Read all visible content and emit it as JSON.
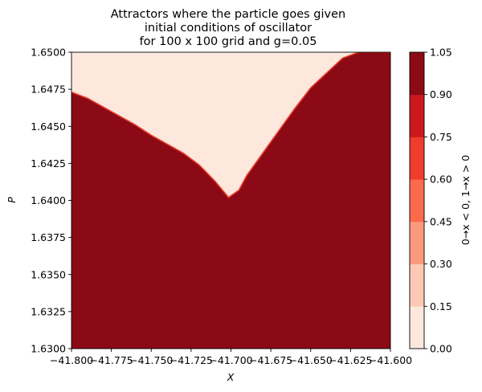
{
  "chart_data": {
    "type": "heatmap",
    "title_lines": [
      "Attractors where the particle goes given",
      "initial conditions of oscillator",
      "for 100 x 100 grid and g=0.05"
    ],
    "xlabel": "X",
    "ylabel": "P",
    "xlim": [
      -41.8,
      -41.6
    ],
    "ylim": [
      1.63,
      1.65
    ],
    "x_ticks": [
      "−41.800",
      "−41.775",
      "−41.750",
      "−41.725",
      "−41.700",
      "−41.675",
      "−41.650",
      "−41.625",
      "−41.600"
    ],
    "x_tick_values": [
      -41.8,
      -41.775,
      -41.75,
      -41.725,
      -41.7,
      -41.675,
      -41.65,
      -41.625,
      -41.6
    ],
    "y_ticks": [
      "1.6300",
      "1.6325",
      "1.6350",
      "1.6375",
      "1.6400",
      "1.6425",
      "1.6450",
      "1.6475",
      "1.6500"
    ],
    "y_tick_values": [
      1.63,
      1.6325,
      1.635,
      1.6375,
      1.64,
      1.6425,
      1.645,
      1.6475,
      1.65
    ],
    "region_value_upper": 0,
    "region_value_lower": 1,
    "boundary": [
      {
        "x": -41.8,
        "y": 1.6473
      },
      {
        "x": -41.79,
        "y": 1.6469
      },
      {
        "x": -41.78,
        "y": 1.6463
      },
      {
        "x": -41.77,
        "y": 1.6457
      },
      {
        "x": -41.76,
        "y": 1.6451
      },
      {
        "x": -41.75,
        "y": 1.6444
      },
      {
        "x": -41.74,
        "y": 1.6438
      },
      {
        "x": -41.73,
        "y": 1.6432
      },
      {
        "x": -41.72,
        "y": 1.6424
      },
      {
        "x": -41.71,
        "y": 1.6413
      },
      {
        "x": -41.7015,
        "y": 1.6402
      },
      {
        "x": -41.695,
        "y": 1.6407
      },
      {
        "x": -41.69,
        "y": 1.6417
      },
      {
        "x": -41.68,
        "y": 1.6432
      },
      {
        "x": -41.67,
        "y": 1.6447
      },
      {
        "x": -41.66,
        "y": 1.6462
      },
      {
        "x": -41.65,
        "y": 1.6476
      },
      {
        "x": -41.64,
        "y": 1.6486
      },
      {
        "x": -41.63,
        "y": 1.6496
      },
      {
        "x": -41.62,
        "y": 1.65
      },
      {
        "x": -41.6,
        "y": 1.65
      }
    ],
    "colorbar": {
      "label": "0→x < 0,  1→x > 0",
      "levels": [
        0.0,
        0.15,
        0.3,
        0.45,
        0.6,
        0.75,
        0.9,
        1.05
      ],
      "tick_labels": [
        "0.00",
        "0.15",
        "0.30",
        "0.45",
        "0.60",
        "0.75",
        "0.90",
        "1.05"
      ],
      "colors": [
        "#fee8de",
        "#fdc9b4",
        "#fc9b7c",
        "#fb6b4b",
        "#ef3c2c",
        "#cb181d",
        "#8b0a15"
      ]
    }
  }
}
